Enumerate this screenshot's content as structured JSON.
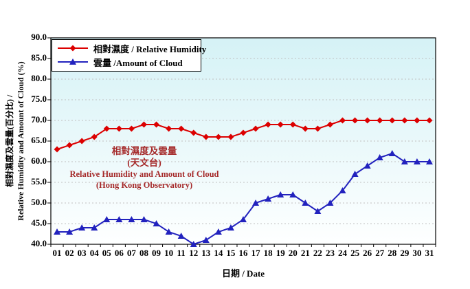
{
  "chart_data": {
    "type": "line",
    "x": [
      "01",
      "02",
      "03",
      "04",
      "05",
      "06",
      "07",
      "08",
      "09",
      "10",
      "11",
      "12",
      "13",
      "14",
      "15",
      "16",
      "17",
      "18",
      "19",
      "20",
      "21",
      "22",
      "23",
      "24",
      "25",
      "26",
      "27",
      "28",
      "29",
      "30",
      "31"
    ],
    "series": [
      {
        "id": "humidity",
        "name": "相對濕度 / Relative Humidity",
        "color": "#DC0000",
        "marker": "diamond",
        "values": [
          63,
          64,
          65,
          66,
          68,
          68,
          68,
          69,
          69,
          68,
          68,
          67,
          66,
          66,
          66,
          67,
          68,
          69,
          69,
          69,
          68,
          68,
          69,
          70,
          70,
          70,
          70,
          70,
          70,
          70,
          70
        ]
      },
      {
        "id": "cloud",
        "name": "雲量 /Amount of Cloud",
        "color": "#2222BE",
        "marker": "triangle",
        "values": [
          43,
          43,
          44,
          44,
          46,
          46,
          46,
          46,
          45,
          43,
          42,
          40,
          41,
          43,
          44,
          46,
          50,
          51,
          52,
          52,
          50,
          48,
          50,
          53,
          57,
          59,
          61,
          62,
          60,
          60,
          60
        ]
      }
    ],
    "annotation": [
      "相對濕度及雲量",
      "(天文台)",
      "Relative Humidity and Amount of Cloud",
      "(Hong Kong Observatory)"
    ],
    "annotation_color": "#A52A2A",
    "xlabel": "日期 / Date",
    "ylabel_line1": "相對濕度及雲量(百分比) /",
    "ylabel_line2": "Relative Humidity and Amount of Cloud (%)",
    "ylim": [
      40,
      90
    ],
    "ytick_step": 5,
    "yticks": [
      "90.0",
      "85.0",
      "80.0",
      "75.0",
      "70.0",
      "65.0",
      "60.0",
      "55.0",
      "50.0",
      "45.0",
      "40.0"
    ],
    "grid": "horizontal dashed",
    "grid_color": "#C0C0C0",
    "frame_color": "#000000",
    "plot_bg_gradient": [
      "#D5F2F6",
      "#FEFFFF"
    ],
    "legend_position": "top-left"
  }
}
